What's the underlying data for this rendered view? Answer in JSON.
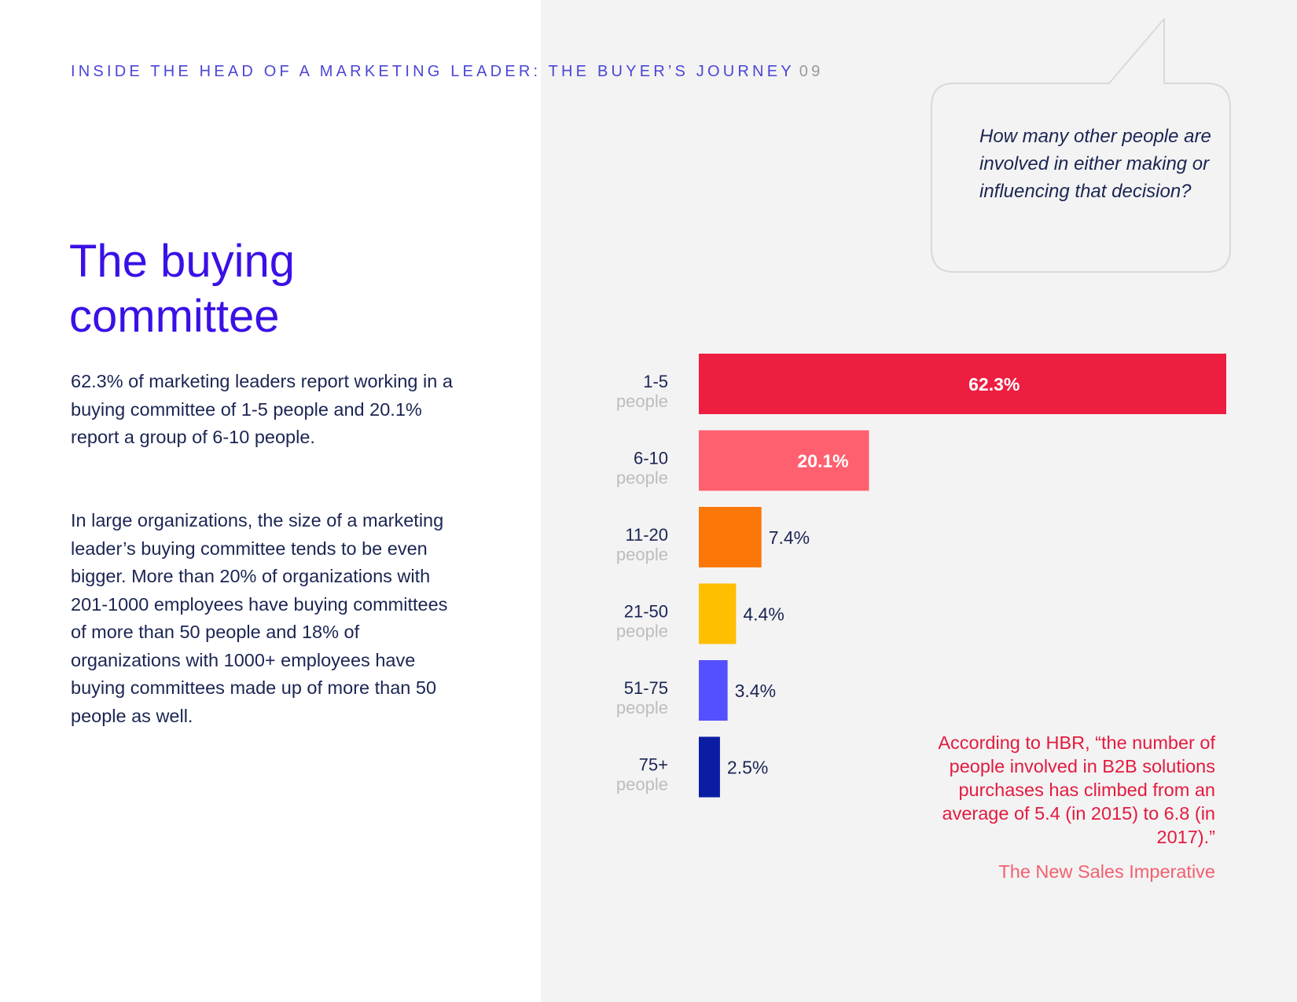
{
  "header": {
    "running_title": "INSIDE THE HEAD OF A MARKETING LEADER: THE BUYER’S JOURNEY",
    "page_number": "09"
  },
  "title": {
    "line1": "The buying",
    "line2": "committee"
  },
  "body": {
    "paragraph1": "62.3% of marketing leaders report working in a buying committee of 1-5 people and 20.1% report a group of 6-10 people.",
    "paragraph2": "In large organizations, the size of a marketing leader’s buying committee tends to be even bigger. More than 20% of organizations with 201-1000 employees have buying committees of more than 50 people and 18% of organizations with 1000+ employees have buying committees made up of more than 50 people as well."
  },
  "callout": {
    "question": "How many other people are involved in either making or influencing that decision?"
  },
  "chart_data": {
    "type": "bar",
    "orientation": "horizontal",
    "categories": [
      "1-5",
      "6-10",
      "11-20",
      "21-50",
      "51-75",
      "75+"
    ],
    "category_sublabel": "people",
    "values": [
      62.3,
      20.1,
      7.4,
      4.4,
      3.4,
      2.5
    ],
    "value_labels": [
      "62.3%",
      "20.1%",
      "7.4%",
      "4.4%",
      "3.4%",
      "2.5%"
    ],
    "colors": [
      "#ee1e41",
      "#ff6070",
      "#fb7708",
      "#fdbf00",
      "#5450ff",
      "#0b1ea3"
    ],
    "xlim": [
      0,
      62.3
    ]
  },
  "quote": {
    "text": "According to HBR, “the number of people involved in B2B solutions purchases has climbed from an average of 5.4 (in 2015) to 6.8 (in 2017).”",
    "source": "The New Sales Imperative"
  }
}
